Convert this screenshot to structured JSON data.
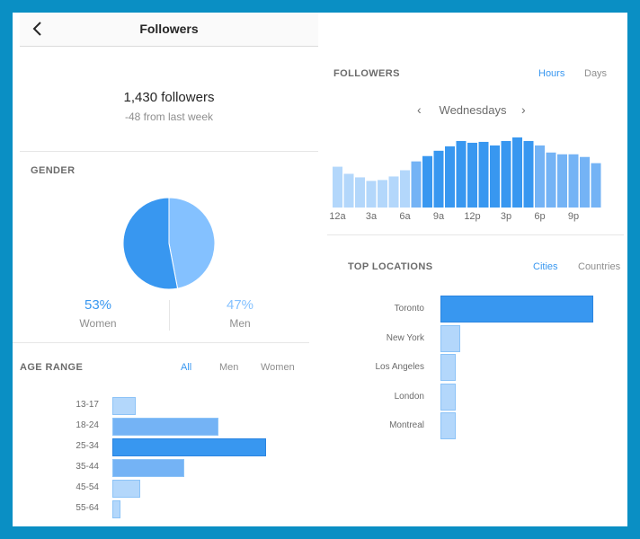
{
  "header": {
    "title": "Followers",
    "back_icon": "back-chevron-icon"
  },
  "summary": {
    "count": "1,430 followers",
    "delta": "-48 from last week"
  },
  "gender": {
    "title": "GENDER",
    "women": {
      "percent": "53%",
      "label": "Women",
      "value": 53,
      "color": "#3897f0"
    },
    "men": {
      "percent": "47%",
      "label": "Men",
      "value": 47,
      "color": "#84c1ff"
    }
  },
  "age_range": {
    "title": "AGE RANGE",
    "tabs": {
      "all": "All",
      "men": "Men",
      "women": "Women"
    },
    "active_tab": "All",
    "groups": [
      "13-17",
      "18-24",
      "25-34",
      "35-44",
      "45-54",
      "55-64"
    ],
    "values": [
      15,
      69,
      100,
      47,
      18,
      5
    ],
    "highlight_index": 2
  },
  "followers_by_time": {
    "title": "FOLLOWERS",
    "tabs": {
      "hours": "Hours",
      "days": "Days"
    },
    "active_tab": "Hours",
    "day": "Wednesdays",
    "tick_labels": [
      "12a",
      "3a",
      "6a",
      "9a",
      "12p",
      "3p",
      "6p",
      "9p"
    ],
    "values": [
      46,
      38,
      34,
      30,
      31,
      35,
      42,
      52,
      58,
      64,
      69,
      75,
      73,
      74,
      70,
      75,
      79,
      75,
      70,
      62,
      60,
      60,
      57,
      50
    ],
    "highlight_range": [
      8,
      17
    ]
  },
  "top_locations": {
    "title": "TOP LOCATIONS",
    "tabs": {
      "cities": "Cities",
      "countries": "Countries"
    },
    "active_tab": "Cities",
    "cities": [
      "Toronto",
      "New York",
      "Los Angeles",
      "London",
      "Montreal"
    ],
    "values": [
      100,
      13,
      10,
      10,
      10
    ],
    "highlight_index": 0
  },
  "colors": {
    "accent": "#3897f0",
    "light": "#b3d7fb",
    "mid": "#84c1ff",
    "dark": "#3897f0",
    "frame": "#0a8fc4"
  }
}
